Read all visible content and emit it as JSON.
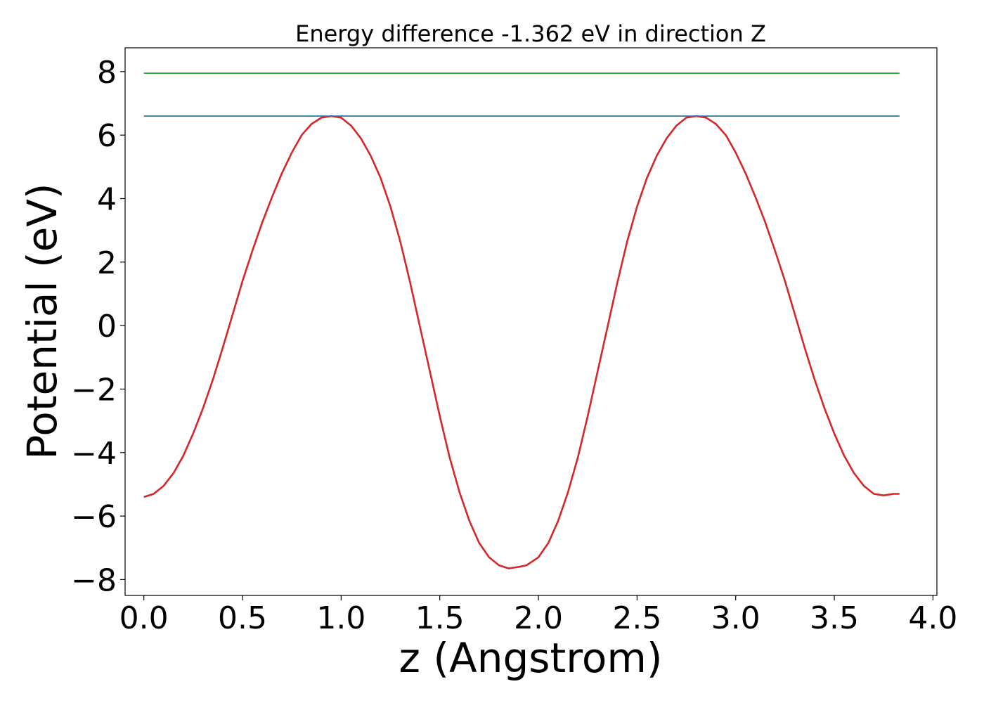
{
  "chart_data": {
    "type": "line",
    "title": "Energy difference -1.362 eV in direction Z",
    "xlabel": "z (Angstrom)",
    "ylabel": "Potential (eV)",
    "xlim": [
      -0.095,
      4.02
    ],
    "ylim": [
      -8.5,
      8.75
    ],
    "xticks": [
      0.0,
      0.5,
      1.0,
      1.5,
      2.0,
      2.5,
      3.0,
      3.5,
      4.0
    ],
    "xtick_labels": [
      "0.0",
      "0.5",
      "1.0",
      "1.5",
      "2.0",
      "2.5",
      "3.0",
      "3.5",
      "4.0"
    ],
    "yticks": [
      8,
      6,
      4,
      2,
      0,
      -2,
      -4,
      -6,
      -8
    ],
    "ytick_labels": [
      "8",
      "6",
      "4",
      "2",
      "0",
      "−2",
      "−4",
      "−6",
      "−8"
    ],
    "grid": false,
    "legend": "none",
    "series": [
      {
        "color": "#d62728",
        "x": [
          0.0,
          0.05,
          0.1,
          0.15,
          0.2,
          0.25,
          0.3,
          0.35,
          0.4,
          0.45,
          0.5,
          0.55,
          0.6,
          0.65,
          0.7,
          0.75,
          0.8,
          0.85,
          0.9,
          0.95,
          1.0,
          1.05,
          1.1,
          1.15,
          1.2,
          1.25,
          1.3,
          1.35,
          1.4,
          1.45,
          1.5,
          1.55,
          1.6,
          1.65,
          1.7,
          1.75,
          1.8,
          1.85,
          1.9,
          1.94,
          2.0,
          2.05,
          2.1,
          2.15,
          2.2,
          2.25,
          2.3,
          2.35,
          2.4,
          2.45,
          2.5,
          2.55,
          2.6,
          2.65,
          2.7,
          2.75,
          2.8,
          2.85,
          2.9,
          2.95,
          3.0,
          3.05,
          3.1,
          3.15,
          3.2,
          3.25,
          3.3,
          3.35,
          3.4,
          3.45,
          3.5,
          3.55,
          3.6,
          3.65,
          3.7,
          3.75,
          3.8,
          3.83
        ],
        "y": [
          -5.4,
          -5.3,
          -5.05,
          -4.65,
          -4.1,
          -3.4,
          -2.6,
          -1.7,
          -0.7,
          0.35,
          1.4,
          2.35,
          3.25,
          4.05,
          4.8,
          5.45,
          6.0,
          6.35,
          6.55,
          6.6,
          6.55,
          6.3,
          5.9,
          5.35,
          4.65,
          3.75,
          2.65,
          1.35,
          -0.05,
          -1.45,
          -2.85,
          -4.15,
          -5.25,
          -6.15,
          -6.85,
          -7.3,
          -7.55,
          -7.65,
          -7.6,
          -7.55,
          -7.3,
          -6.85,
          -6.15,
          -5.25,
          -4.15,
          -2.85,
          -1.45,
          -0.05,
          1.35,
          2.65,
          3.75,
          4.65,
          5.35,
          5.9,
          6.3,
          6.55,
          6.6,
          6.55,
          6.35,
          6.0,
          5.45,
          4.8,
          4.05,
          3.25,
          2.35,
          1.4,
          0.35,
          -0.7,
          -1.7,
          -2.6,
          -3.4,
          -4.1,
          -4.65,
          -5.05,
          -5.3,
          -5.35,
          -5.3,
          -5.3
        ]
      },
      {
        "color": "#1f77b4",
        "x": [
          0.0,
          3.83
        ],
        "y": [
          6.6,
          6.6
        ]
      },
      {
        "color": "#2ca02c",
        "x": [
          0.0,
          3.83
        ],
        "y": [
          7.95,
          7.95
        ]
      }
    ]
  }
}
